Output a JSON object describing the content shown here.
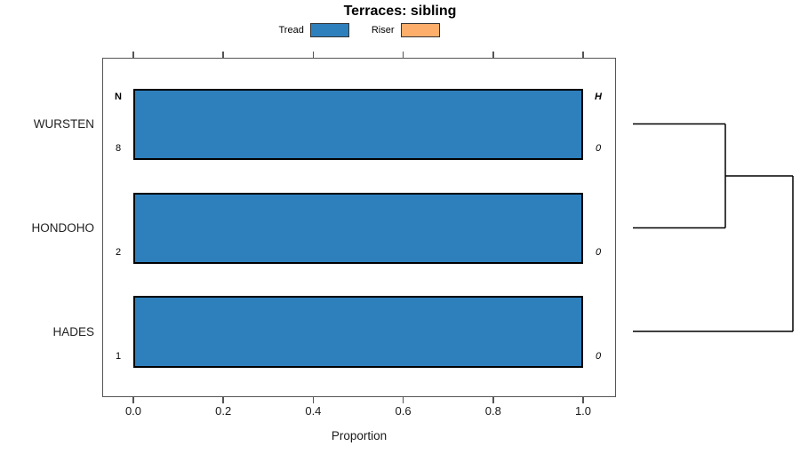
{
  "chart_data": {
    "type": "bar",
    "orientation": "horizontal",
    "title": "Terraces: sibling",
    "xlabel": "Proportion",
    "xlim": [
      0,
      1
    ],
    "xticks": [
      0,
      0.2,
      0.4,
      0.6,
      0.8,
      1
    ],
    "xtick_labels": [
      "0.0",
      "0.2",
      "0.4",
      "0.6",
      "0.8",
      "1.0"
    ],
    "categories": [
      "WURSTEN",
      "HONDOHO",
      "HADES"
    ],
    "series": [
      {
        "name": "Tread",
        "color": "#2e80bd",
        "values": [
          1.0,
          1.0,
          1.0
        ]
      },
      {
        "name": "Riser",
        "color": "#fdae6b",
        "values": [
          0.0,
          0.0,
          0.0
        ]
      }
    ],
    "bar_border_color": "#000000",
    "annotations": {
      "left_header": "N",
      "left_values": [
        "8",
        "2",
        "1"
      ],
      "right_header": "H",
      "right_values": [
        "0",
        "0",
        "0"
      ]
    },
    "dendrogram": {
      "structure": "((WURSTEN, HONDOHO), HADES)",
      "line_color": "#000000"
    },
    "legend_position": "top",
    "grid": false
  }
}
